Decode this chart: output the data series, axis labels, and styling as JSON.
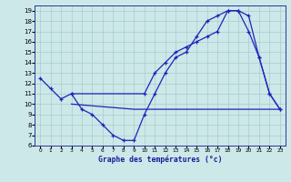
{
  "title": "Graphe des températures (°c)",
  "bg_color": "#cce8e8",
  "line_color": "#2222bb",
  "grid_color": "#aacccc",
  "xlim": [
    -0.5,
    23.5
  ],
  "ylim": [
    6,
    19.5
  ],
  "xticks": [
    0,
    1,
    2,
    3,
    4,
    5,
    6,
    7,
    8,
    9,
    10,
    11,
    12,
    13,
    14,
    15,
    16,
    17,
    18,
    19,
    20,
    21,
    22,
    23
  ],
  "yticks": [
    6,
    7,
    8,
    9,
    10,
    11,
    12,
    13,
    14,
    15,
    16,
    17,
    18,
    19
  ],
  "line1_x": [
    0,
    1,
    2,
    3,
    4,
    5,
    6,
    7,
    8,
    9,
    10,
    11,
    12,
    13,
    14,
    15,
    16,
    17,
    18,
    19,
    20,
    21,
    22,
    23
  ],
  "line1_y": [
    12.5,
    11.5,
    10.5,
    11.0,
    9.5,
    9.0,
    8.0,
    7.0,
    6.5,
    6.5,
    9.0,
    11.0,
    13.0,
    14.5,
    15.0,
    16.5,
    18.0,
    18.5,
    19.0,
    19.0,
    18.5,
    14.5,
    11.0,
    9.5
  ],
  "line2_x": [
    3,
    10,
    11,
    12,
    13,
    14,
    15,
    16,
    17,
    18,
    19,
    20,
    21,
    22,
    23
  ],
  "line2_y": [
    11.0,
    11.0,
    13.0,
    14.0,
    15.0,
    15.5,
    16.0,
    16.5,
    17.0,
    19.0,
    19.0,
    17.0,
    14.5,
    11.0,
    9.5
  ],
  "line3_x": [
    3,
    9,
    10,
    11,
    12,
    13,
    14,
    15,
    16,
    17,
    18,
    19,
    20,
    21,
    22,
    23
  ],
  "line3_y": [
    10.0,
    9.5,
    9.5,
    9.5,
    9.5,
    9.5,
    9.5,
    9.5,
    9.5,
    9.5,
    9.5,
    9.5,
    9.5,
    9.5,
    9.5,
    9.5
  ]
}
